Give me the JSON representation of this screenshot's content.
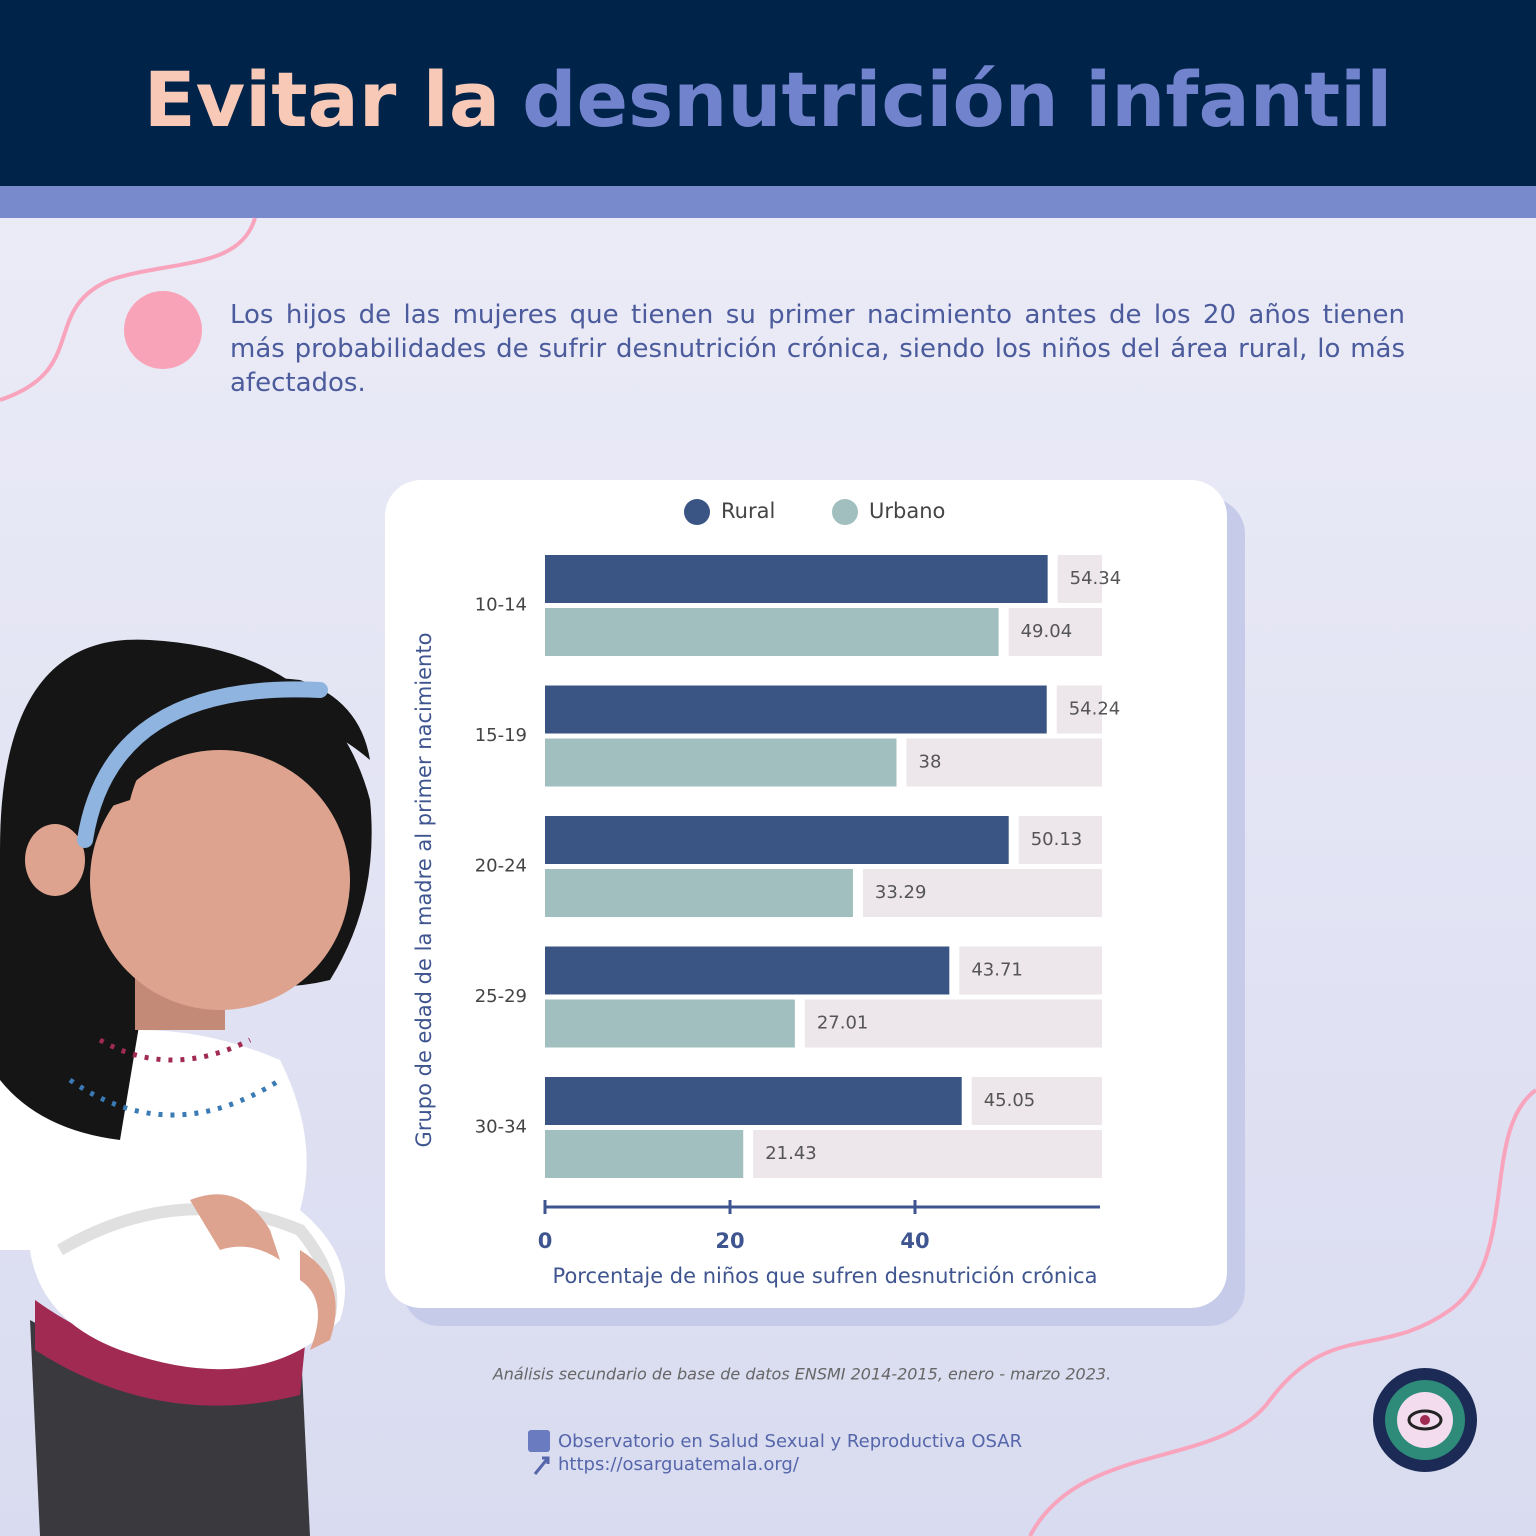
{
  "header": {
    "title_part1": "Evitar la",
    "title_part2": "desnutrición infantil"
  },
  "intro": "Los hijos de las mujeres que tienen su primer nacimiento antes de los 20 años tienen más probabilidades de sufrir desnutrición crónica, siendo los niños del área rural, lo más afectados.",
  "chart_data": {
    "type": "bar",
    "orientation": "horizontal",
    "categories": [
      "10-14",
      "15-19",
      "20-24",
      "25-29",
      "30-34"
    ],
    "series": [
      {
        "name": "Rural",
        "color": "#3a5484",
        "values": [
          54.34,
          54.24,
          50.13,
          43.71,
          45.05
        ]
      },
      {
        "name": "Urbano",
        "color": "#a1bfbe",
        "values": [
          49.04,
          38,
          33.29,
          27.01,
          21.43
        ]
      }
    ],
    "xlim": [
      0,
      60
    ],
    "xticks": [
      0,
      20,
      40
    ],
    "xlabel": "Porcentaje de niños que sufren desnutrición crónica",
    "ylabel": "Grupo de edad de la madre al primer nacimiento",
    "legend": "top"
  },
  "footer": {
    "source": "Análisis secundario de base de datos ENSMI 2014-2015, enero - marzo 2023.",
    "facebook": "Observatorio en Salud Sexual y Reproductiva OSAR",
    "url": "https://osarguatemala.org/"
  }
}
